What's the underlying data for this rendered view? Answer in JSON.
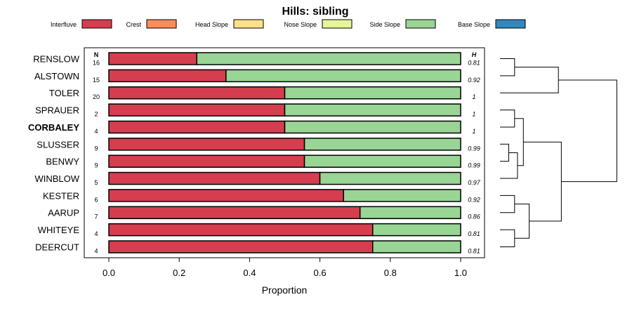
{
  "chart_data": {
    "type": "bar",
    "orientation": "horizontal",
    "stacked": true,
    "title": "Hills: sibling",
    "xlabel": "Proportion",
    "ylabel": "",
    "xlim": [
      0,
      1
    ],
    "xticks": [
      "0.0",
      "0.2",
      "0.4",
      "0.6",
      "0.8",
      "1.0"
    ],
    "xtick_values": [
      0,
      0.2,
      0.4,
      0.6,
      0.8,
      1.0
    ],
    "n_header": "N",
    "h_header": "H",
    "legend_position": "top",
    "legend": [
      {
        "name": "Interfluve",
        "color": "#D53E4F"
      },
      {
        "name": "Crest",
        "color": "#FC8D59"
      },
      {
        "name": "Head Slope",
        "color": "#FEE08B"
      },
      {
        "name": "Nose Slope",
        "color": "#E6F598"
      },
      {
        "name": "Side Slope",
        "color": "#99D594"
      },
      {
        "name": "Base Slope",
        "color": "#3288BD"
      }
    ],
    "categories": [
      "RENSLOW",
      "ALSTOWN",
      "TOLER",
      "SPRAUER",
      "CORBALEY",
      "SLUSSER",
      "BENWY",
      "WINBLOW",
      "KESTER",
      "AARUP",
      "WHITEYE",
      "DEERCUT"
    ],
    "highlighted": "CORBALEY",
    "series": [
      {
        "name": "Interfluve",
        "values": [
          0.25,
          0.333,
          0.5,
          0.5,
          0.5,
          0.556,
          0.556,
          0.6,
          0.667,
          0.714,
          0.75,
          0.75
        ]
      },
      {
        "name": "Side Slope",
        "values": [
          0.75,
          0.667,
          0.5,
          0.5,
          0.5,
          0.444,
          0.444,
          0.4,
          0.333,
          0.286,
          0.25,
          0.25
        ]
      }
    ],
    "n": [
      "16",
      "15",
      "20",
      "2",
      "4",
      "9",
      "9",
      "5",
      "6",
      "7",
      "4",
      "4"
    ],
    "h": [
      "0.81",
      "0.92",
      "1",
      "1",
      "1",
      "0.99",
      "0.99",
      "0.97",
      "0.92",
      "0.86",
      "0.81",
      "0.81"
    ],
    "dendrogram": {
      "description": "hierarchical clustering of rows (row indices 0-11)",
      "merges": [
        {
          "a": [
            0
          ],
          "b": [
            1
          ],
          "height": 0.1
        },
        {
          "a": [
            5
          ],
          "b": [
            6
          ],
          "height": 0.06
        },
        {
          "a": [
            5,
            6
          ],
          "b": [
            7
          ],
          "height": 0.12
        },
        {
          "a": [
            3
          ],
          "b": [
            4
          ],
          "height": 0.1
        },
        {
          "a": [
            3,
            4
          ],
          "b": [
            5,
            6,
            7
          ],
          "height": 0.16
        },
        {
          "a": [
            10
          ],
          "b": [
            11
          ],
          "height": 0.1
        },
        {
          "a": [
            8
          ],
          "b": [
            9
          ],
          "height": 0.1
        },
        {
          "a": [
            8,
            9
          ],
          "b": [
            10,
            11
          ],
          "height": 0.2
        },
        {
          "a": [
            3,
            4,
            5,
            6,
            7
          ],
          "b": [
            8,
            9,
            10,
            11
          ],
          "height": 0.42
        },
        {
          "a": [
            0,
            1
          ],
          "b": [
            2
          ],
          "height": 0.4
        },
        {
          "a": [
            0,
            1,
            2
          ],
          "b": [
            3,
            4,
            5,
            6,
            7,
            8,
            9,
            10,
            11
          ],
          "height": 0.8
        }
      ]
    }
  }
}
